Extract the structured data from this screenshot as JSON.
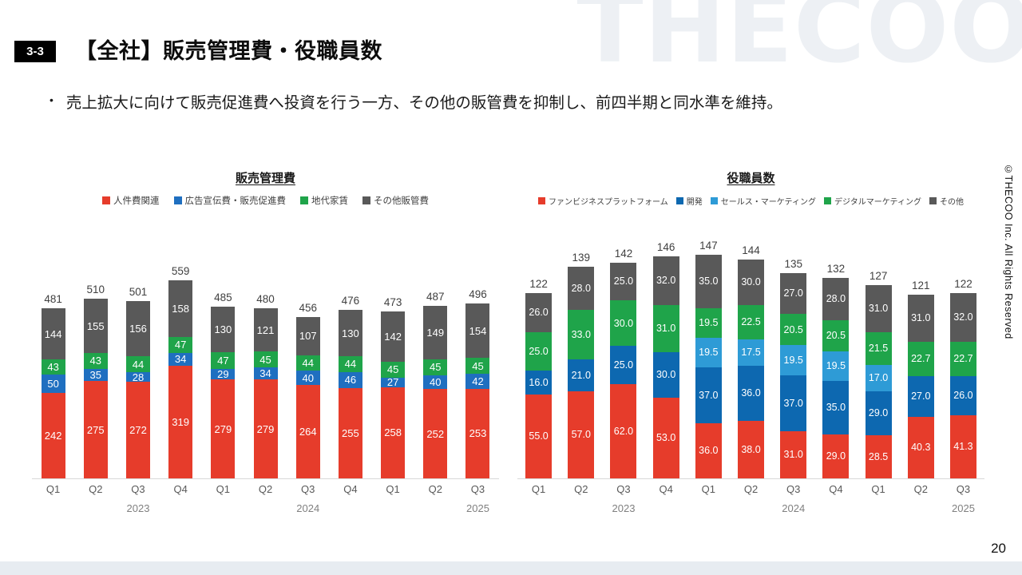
{
  "slide": {
    "section_number": "3-3",
    "title": "【全社】販売管理費・役職員数",
    "bullet_marker": "•",
    "bullet": "売上拡大に向けて販売促進費へ投資を行う一方、その他の販管費を抑制し、前四半期と同水準を維持。",
    "watermark": "THECOO",
    "copyright_vertical": "©THECOO Inc. All Rights Reserved",
    "page_number": "20"
  },
  "chart_data": [
    {
      "type": "bar",
      "stacked": true,
      "title": "販売管理費",
      "legend_position": "top",
      "grid": false,
      "value_format": "integer",
      "categories": [
        "Q1",
        "Q2",
        "Q3",
        "Q4",
        "Q1",
        "Q2",
        "Q3",
        "Q4",
        "Q1",
        "Q2",
        "Q3"
      ],
      "year_labels": [
        {
          "index": 2,
          "label": "2023"
        },
        {
          "index": 6,
          "label": "2024"
        },
        {
          "index": 10,
          "label": "2025"
        }
      ],
      "series": [
        {
          "name": "人件費関連",
          "color": "#E63C2B",
          "values": [
            242,
            275,
            272,
            319,
            279,
            279,
            264,
            255,
            258,
            252,
            253
          ]
        },
        {
          "name": "広告宣伝費・販売促進費",
          "color": "#1F6FC0",
          "values": [
            50,
            35,
            28,
            34,
            29,
            34,
            40,
            46,
            27,
            40,
            42
          ]
        },
        {
          "name": "地代家賃",
          "color": "#1FA44A",
          "values": [
            43,
            43,
            44,
            47,
            47,
            45,
            44,
            44,
            45,
            45,
            45
          ]
        },
        {
          "name": "その他販管費",
          "color": "#595959",
          "values": [
            144,
            155,
            156,
            158,
            130,
            121,
            107,
            130,
            142,
            149,
            154
          ]
        }
      ],
      "totals": [
        481,
        510,
        501,
        559,
        485,
        480,
        456,
        476,
        473,
        487,
        496
      ]
    },
    {
      "type": "bar",
      "stacked": true,
      "title": "役職員数",
      "legend_position": "top",
      "grid": false,
      "value_format": "one_decimal",
      "categories": [
        "Q1",
        "Q2",
        "Q3",
        "Q4",
        "Q1",
        "Q2",
        "Q3",
        "Q4",
        "Q1",
        "Q2",
        "Q3"
      ],
      "year_labels": [
        {
          "index": 2,
          "label": "2023"
        },
        {
          "index": 6,
          "label": "2024"
        },
        {
          "index": 10,
          "label": "2025"
        }
      ],
      "series": [
        {
          "name": "ファンビジネスプラットフォーム",
          "color": "#E63C2B",
          "values": [
            55,
            57,
            62,
            53,
            36,
            38,
            31,
            29,
            28.5,
            40.3,
            41.3
          ]
        },
        {
          "name": "開発",
          "color": "#0D68B0",
          "values": [
            16,
            21,
            25,
            30,
            37,
            36,
            37,
            35,
            29,
            27,
            26
          ]
        },
        {
          "name": "セールス・マーケティング",
          "color": "#2E9BD6",
          "values": [
            0,
            0,
            0,
            0,
            19.5,
            17.5,
            19.5,
            19.5,
            17,
            0,
            0
          ]
        },
        {
          "name": "デジタルマーケティング",
          "color": "#1FA44A",
          "values": [
            25,
            33,
            30,
            31,
            19.5,
            22.5,
            20.5,
            20.5,
            21.5,
            22.7,
            22.7
          ]
        },
        {
          "name": "その他",
          "color": "#595959",
          "values": [
            26,
            28,
            25,
            32,
            35,
            30,
            27,
            28,
            31,
            31,
            32
          ]
        }
      ],
      "totals": [
        122,
        139,
        142,
        146,
        147,
        144,
        135,
        132,
        127,
        121,
        122
      ]
    }
  ]
}
